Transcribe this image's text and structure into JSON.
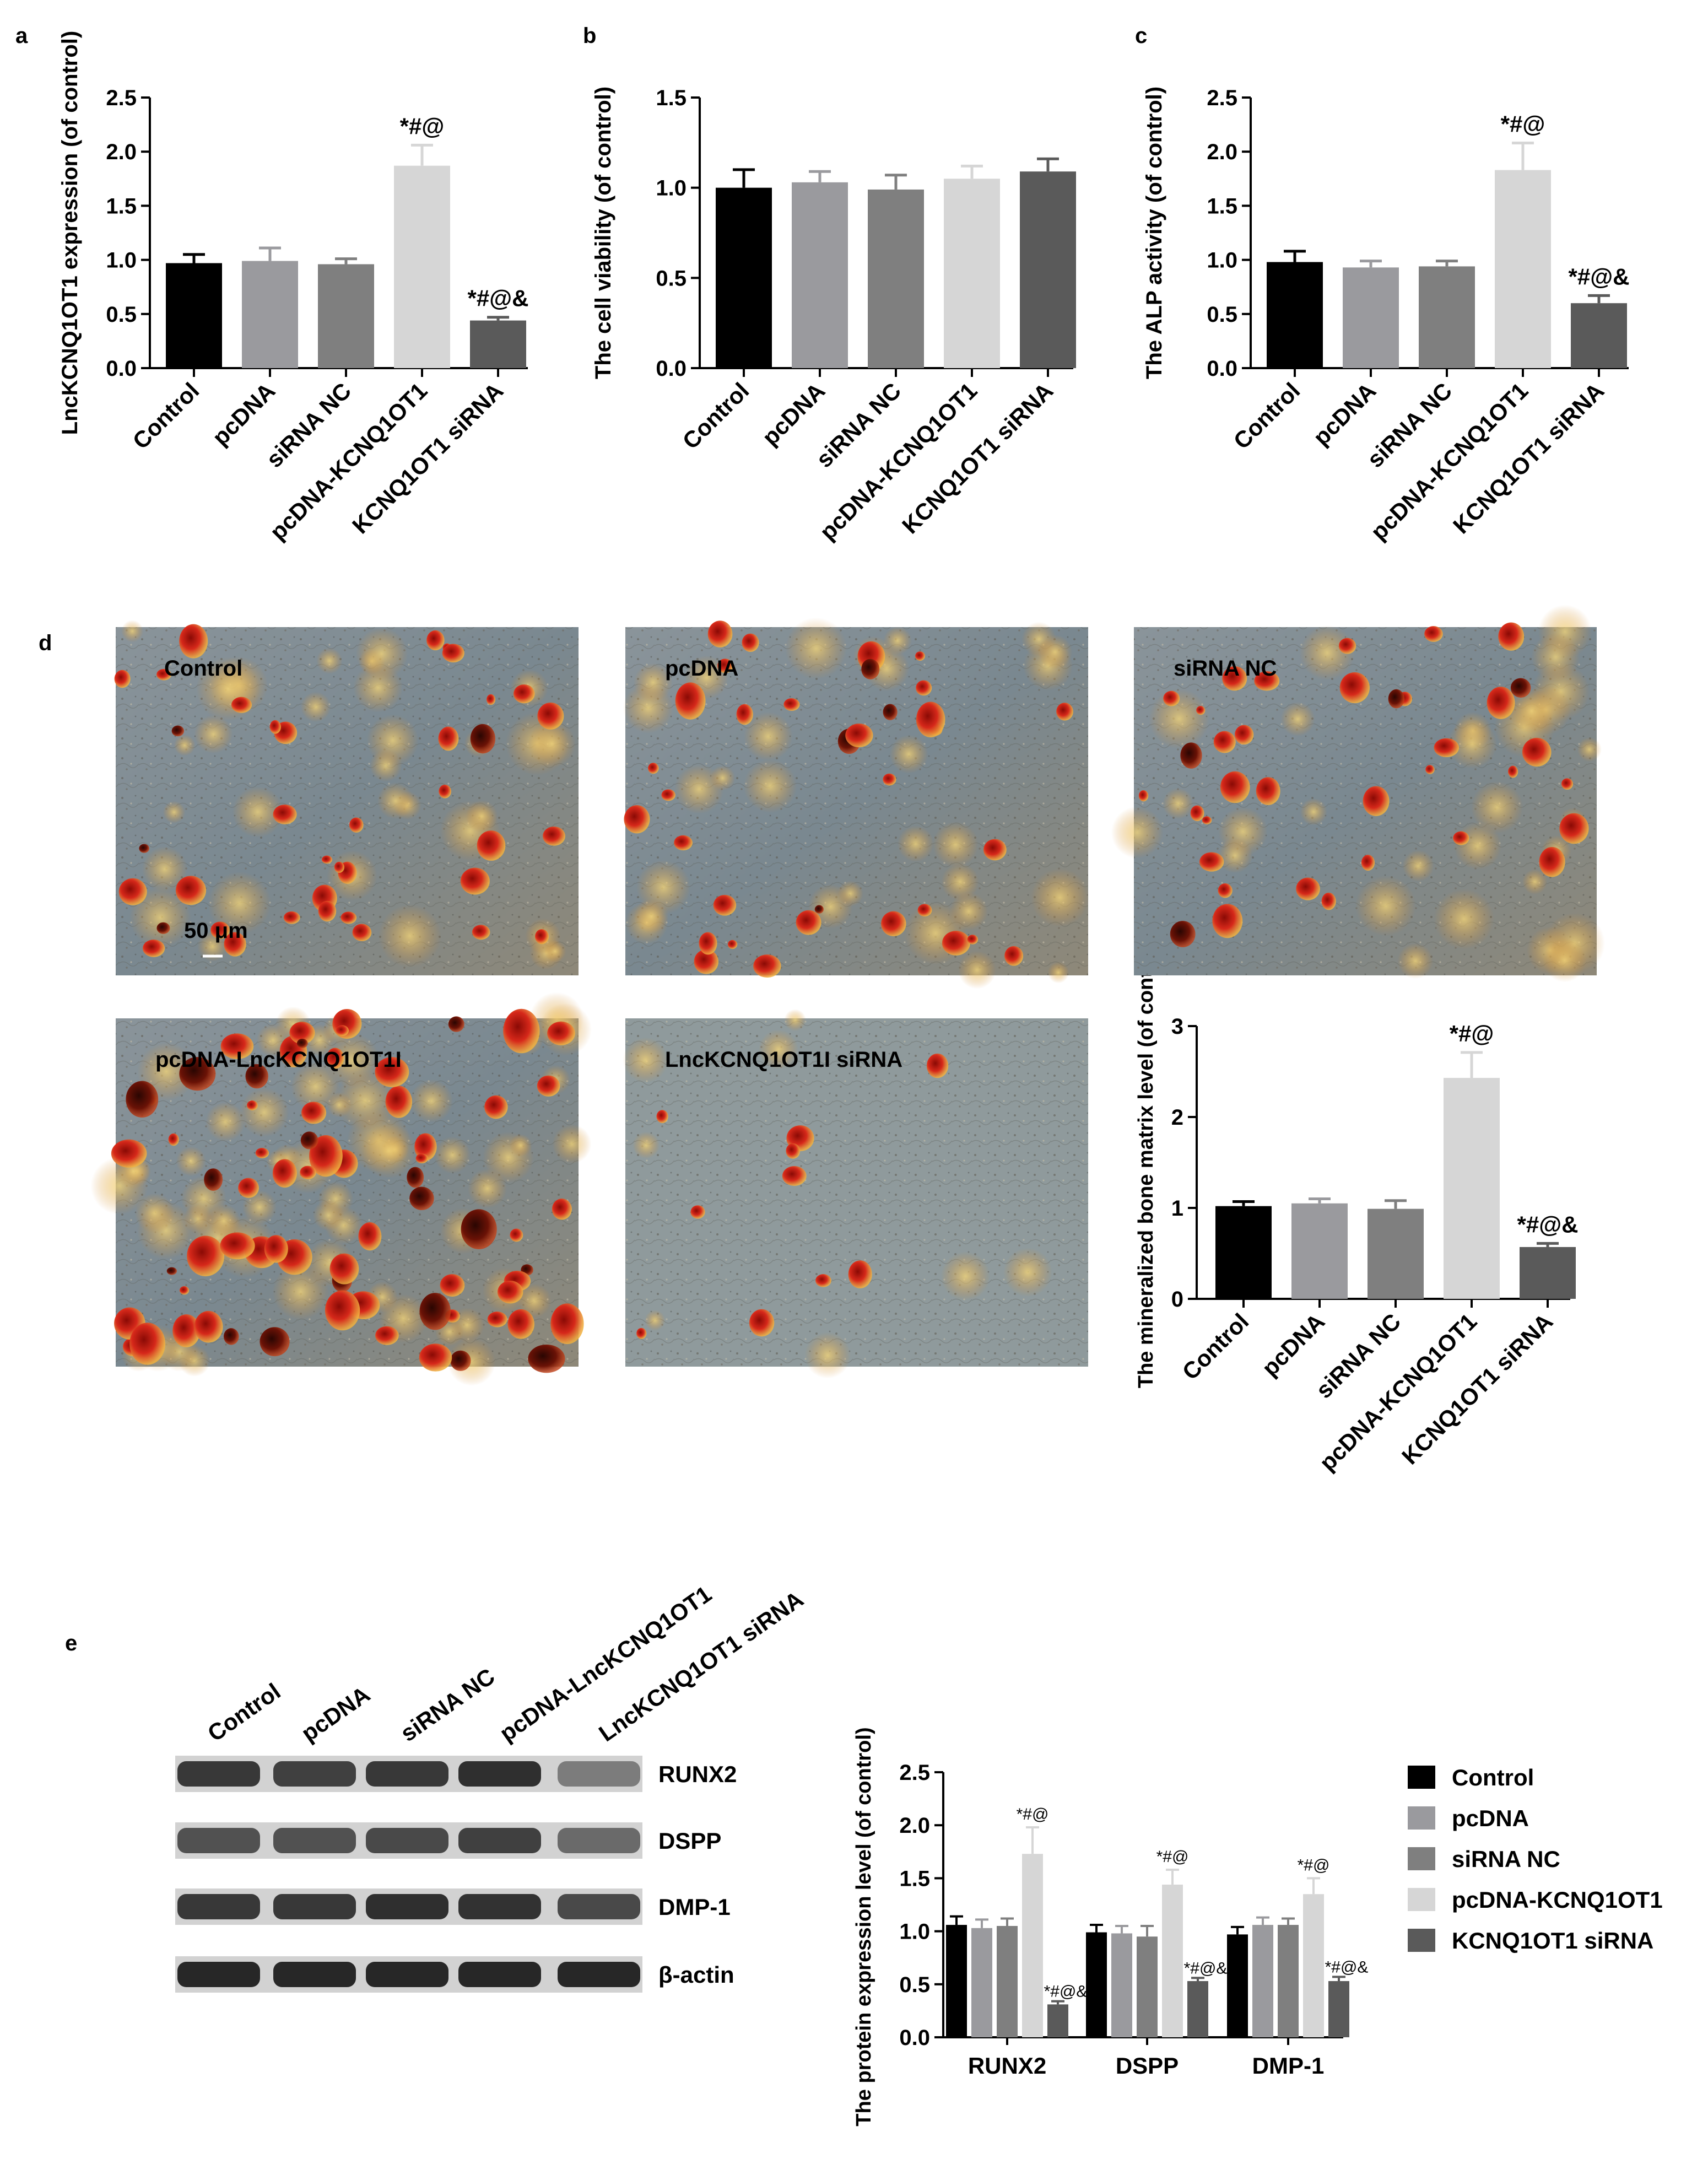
{
  "panel_labels": {
    "a": "a",
    "b": "b",
    "c": "c",
    "d": "d",
    "e": "e"
  },
  "colors": {
    "control": "#000000",
    "pcdna": "#9a9a9e",
    "sirna_nc": "#7f7f7f",
    "pcdna_kcnq1ot1": "#d6d6d6",
    "kcnq1ot1_sirna": "#5a5a5a"
  },
  "micrographs": {
    "labels": [
      "Control",
      "pcDNA",
      "siRNA NC",
      "pcDNA-LncKCNQ1OT1I",
      "LncKCNQ1OT1I siRNA"
    ],
    "scale_bar": "50 μm"
  },
  "western_blot": {
    "lanes": [
      "Control",
      "pcDNA",
      "siRNA NC",
      "pcDNA-LncKCNQ1OT1",
      "LncKCNQ1OT1 siRNA"
    ],
    "rows": [
      {
        "name": "RUNX2",
        "intensity": [
          0.85,
          0.8,
          0.85,
          0.9,
          0.45
        ]
      },
      {
        "name": "DSPP",
        "intensity": [
          0.7,
          0.7,
          0.75,
          0.8,
          0.55
        ]
      },
      {
        "name": "DMP-1",
        "intensity": [
          0.85,
          0.85,
          0.9,
          0.88,
          0.75
        ]
      },
      {
        "name": "β-actin",
        "intensity": [
          0.95,
          0.95,
          0.95,
          0.95,
          0.95
        ]
      }
    ]
  },
  "chart_data": [
    {
      "id": "a",
      "type": "bar",
      "categories": [
        "Control",
        "pcDNA",
        "siRNA NC",
        "pcDNA-KCNQ1OT1",
        "KCNQ1OT1 siRNA"
      ],
      "values": [
        0.97,
        0.99,
        0.96,
        1.87,
        0.44
      ],
      "errors": [
        0.08,
        0.12,
        0.05,
        0.19,
        0.03
      ],
      "annotations": [
        "",
        "",
        "",
        "*#@",
        "*#@&"
      ],
      "ylabel": "LncKCNQ1OT1 expression (of control)",
      "ylim": [
        0,
        2.5
      ],
      "yticks": [
        "0.0",
        "0.5",
        "1.0",
        "1.5",
        "2.0",
        "2.5"
      ]
    },
    {
      "id": "b",
      "type": "bar",
      "categories": [
        "Control",
        "pcDNA",
        "siRNA NC",
        "pcDNA-KCNQ1OT1",
        "KCNQ1OT1 siRNA"
      ],
      "values": [
        1.0,
        1.03,
        0.99,
        1.05,
        1.09
      ],
      "errors": [
        0.1,
        0.06,
        0.08,
        0.07,
        0.07
      ],
      "annotations": [
        "",
        "",
        "",
        "",
        ""
      ],
      "ylabel": "The cell viability (of control)",
      "ylim": [
        0,
        1.5
      ],
      "yticks": [
        "0.0",
        "0.5",
        "1.0",
        "1.5"
      ]
    },
    {
      "id": "c",
      "type": "bar",
      "categories": [
        "Control",
        "pcDNA",
        "siRNA NC",
        "pcDNA-KCNQ1OT1",
        "KCNQ1OT1 siRNA"
      ],
      "values": [
        0.98,
        0.93,
        0.94,
        1.83,
        0.6
      ],
      "errors": [
        0.1,
        0.06,
        0.05,
        0.25,
        0.07
      ],
      "annotations": [
        "",
        "",
        "",
        "*#@",
        "*#@&"
      ],
      "ylabel": "The ALP activity (of control)",
      "ylim": [
        0,
        2.5
      ],
      "yticks": [
        "0.0",
        "0.5",
        "1.0",
        "1.5",
        "2.0",
        "2.5"
      ]
    },
    {
      "id": "d",
      "type": "bar",
      "categories": [
        "Control",
        "pcDNA",
        "siRNA NC",
        "pcDNA-KCNQ1OT1",
        "KCNQ1OT1 siRNA"
      ],
      "values": [
        1.02,
        1.05,
        0.99,
        2.43,
        0.57
      ],
      "errors": [
        0.05,
        0.05,
        0.09,
        0.28,
        0.04
      ],
      "annotations": [
        "",
        "",
        "",
        "*#@",
        "*#@&"
      ],
      "ylabel": "The mineralized bone matrix level (of control)",
      "ylim": [
        0,
        3
      ],
      "yticks": [
        "0",
        "1",
        "2",
        "3"
      ]
    },
    {
      "id": "e",
      "type": "bar",
      "categories": [
        "RUNX2",
        "DSPP",
        "DMP-1"
      ],
      "series": [
        {
          "name": "Control",
          "values": [
            1.06,
            0.99,
            0.97
          ],
          "errors": [
            0.08,
            0.07,
            0.07
          ],
          "annotations": [
            "",
            "",
            ""
          ]
        },
        {
          "name": "pcDNA",
          "values": [
            1.03,
            0.98,
            1.06
          ],
          "errors": [
            0.08,
            0.07,
            0.07
          ],
          "annotations": [
            "",
            "",
            ""
          ]
        },
        {
          "name": "siRNA NC",
          "values": [
            1.05,
            0.95,
            1.06
          ],
          "errors": [
            0.07,
            0.1,
            0.06
          ],
          "annotations": [
            "",
            "",
            ""
          ]
        },
        {
          "name": "pcDNA-KCNQ1OT1",
          "values": [
            1.73,
            1.44,
            1.35
          ],
          "errors": [
            0.25,
            0.14,
            0.15
          ],
          "annotations": [
            "*#@",
            "*#@",
            "*#@"
          ]
        },
        {
          "name": "KCNQ1OT1 siRNA",
          "values": [
            0.31,
            0.53,
            0.53
          ],
          "errors": [
            0.03,
            0.03,
            0.04
          ],
          "annotations": [
            "*#@&",
            "*#@&",
            "*#@&"
          ]
        }
      ],
      "ylabel": "The protein expression level (of control)",
      "ylim": [
        0,
        2.5
      ],
      "yticks": [
        "0.0",
        "0.5",
        "1.0",
        "1.5",
        "2.0",
        "2.5"
      ],
      "legend": "right"
    }
  ]
}
